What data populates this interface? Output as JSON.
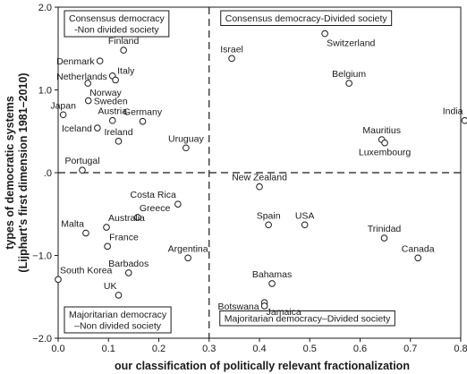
{
  "chart_data": {
    "type": "scatter",
    "xlabel": "our classification of politically relevant fractionalization",
    "ylabel_line1": "types of democratic systems",
    "ylabel_line2": "(Lijphart's first dimension 1981–2010)",
    "xlim": [
      0,
      0.8
    ],
    "ylim": [
      -2,
      2
    ],
    "x_ticks": [
      {
        "value": 0.0,
        "label": "0.0"
      },
      {
        "value": 0.1,
        "label": "0.1"
      },
      {
        "value": 0.2,
        "label": "0.2"
      },
      {
        "value": 0.3,
        "label": "0.3"
      },
      {
        "value": 0.4,
        "label": "0.4"
      },
      {
        "value": 0.5,
        "label": "0.5"
      },
      {
        "value": 0.6,
        "label": "0.6"
      },
      {
        "value": 0.7,
        "label": "0.7"
      },
      {
        "value": 0.8,
        "label": "0.8"
      }
    ],
    "y_ticks": [
      {
        "value": 2.0,
        "label": "2.0"
      },
      {
        "value": 1.0,
        "label": "1.0"
      },
      {
        "value": 0.0,
        "label": ".0"
      },
      {
        "value": -1.0,
        "label": "−1.0"
      },
      {
        "value": -2.0,
        "label": "−2.0"
      }
    ],
    "reference_lines": {
      "x": 0.3,
      "y": 0.0,
      "style": "dashed"
    },
    "quadrant_labels": [
      {
        "lines": [
          "Consensus democracy",
          "-Non divided society"
        ],
        "position": "top-left"
      },
      {
        "lines": [
          "Consensus democracy-Divided society"
        ],
        "position": "top-right"
      },
      {
        "lines": [
          "Majoritarian democracy",
          "–Non divided society"
        ],
        "position": "bottom-left"
      },
      {
        "lines": [
          "Majoritarian democracy–Divided society"
        ],
        "position": "bottom-right"
      }
    ],
    "points": [
      {
        "label": "Finland",
        "x": 0.13,
        "y": 1.48,
        "anchor": "above"
      },
      {
        "label": "Denmark",
        "x": 0.083,
        "y": 1.35,
        "anchor": "left"
      },
      {
        "label": "Netherlands",
        "x": 0.108,
        "y": 1.17,
        "anchor": "left"
      },
      {
        "label": "Italy",
        "x": 0.114,
        "y": 1.12,
        "anchor": "above-right"
      },
      {
        "label": "Norway",
        "x": 0.059,
        "y": 1.08,
        "anchor": "below-right"
      },
      {
        "label": "Sweden",
        "x": 0.06,
        "y": 0.87,
        "anchor": "right"
      },
      {
        "label": "Japan",
        "x": 0.01,
        "y": 0.7,
        "anchor": "above"
      },
      {
        "label": "Austria",
        "x": 0.108,
        "y": 0.63,
        "anchor": "above"
      },
      {
        "label": "Germany",
        "x": 0.168,
        "y": 0.62,
        "anchor": "above"
      },
      {
        "label": "Iceland",
        "x": 0.078,
        "y": 0.54,
        "anchor": "left"
      },
      {
        "label": "Ireland",
        "x": 0.12,
        "y": 0.38,
        "anchor": "above"
      },
      {
        "label": "Uruguay",
        "x": 0.254,
        "y": 0.3,
        "anchor": "above"
      },
      {
        "label": "Portugal",
        "x": 0.048,
        "y": 0.03,
        "anchor": "above"
      },
      {
        "label": "Israel",
        "x": 0.345,
        "y": 1.38,
        "anchor": "above"
      },
      {
        "label": "Switzerland",
        "x": 0.53,
        "y": 1.68,
        "anchor": "below-right"
      },
      {
        "label": "Belgium",
        "x": 0.578,
        "y": 1.08,
        "anchor": "above"
      },
      {
        "label": "India",
        "x": 0.808,
        "y": 0.63,
        "anchor": "above-left"
      },
      {
        "label": "Mauritius",
        "x": 0.643,
        "y": 0.4,
        "anchor": "above"
      },
      {
        "label": "Luxembourg",
        "x": 0.649,
        "y": 0.36,
        "anchor": "below"
      },
      {
        "label": "New Zealand",
        "x": 0.4,
        "y": -0.17,
        "anchor": "above"
      },
      {
        "label": "Costa Rica",
        "x": 0.238,
        "y": -0.38,
        "anchor": "above-left"
      },
      {
        "label": "Greece",
        "x": 0.158,
        "y": -0.54,
        "anchor": "above-right"
      },
      {
        "label": "Australia",
        "x": 0.096,
        "y": -0.66,
        "anchor": "above-right"
      },
      {
        "label": "Malta",
        "x": 0.055,
        "y": -0.73,
        "anchor": "above-left"
      },
      {
        "label": "France",
        "x": 0.098,
        "y": -0.89,
        "anchor": "above-right"
      },
      {
        "label": "Spain",
        "x": 0.418,
        "y": -0.63,
        "anchor": "above"
      },
      {
        "label": "USA",
        "x": 0.49,
        "y": -0.63,
        "anchor": "above"
      },
      {
        "label": "Trinidad",
        "x": 0.648,
        "y": -0.79,
        "anchor": "above"
      },
      {
        "label": "Argentina",
        "x": 0.258,
        "y": -1.03,
        "anchor": "above"
      },
      {
        "label": "Canada",
        "x": 0.715,
        "y": -1.03,
        "anchor": "above"
      },
      {
        "label": "South Korea",
        "x": 0.0,
        "y": -1.29,
        "anchor": "above-right"
      },
      {
        "label": "Barbados",
        "x": 0.14,
        "y": -1.21,
        "anchor": "above"
      },
      {
        "label": "UK",
        "x": 0.12,
        "y": -1.48,
        "anchor": "above-left"
      },
      {
        "label": "Bahamas",
        "x": 0.425,
        "y": -1.34,
        "anchor": "above"
      },
      {
        "label": "Jamaica",
        "x": 0.41,
        "y": -1.57,
        "anchor": "below-right"
      },
      {
        "label": "Botswana",
        "x": 0.41,
        "y": -1.61,
        "anchor": "left"
      }
    ]
  }
}
